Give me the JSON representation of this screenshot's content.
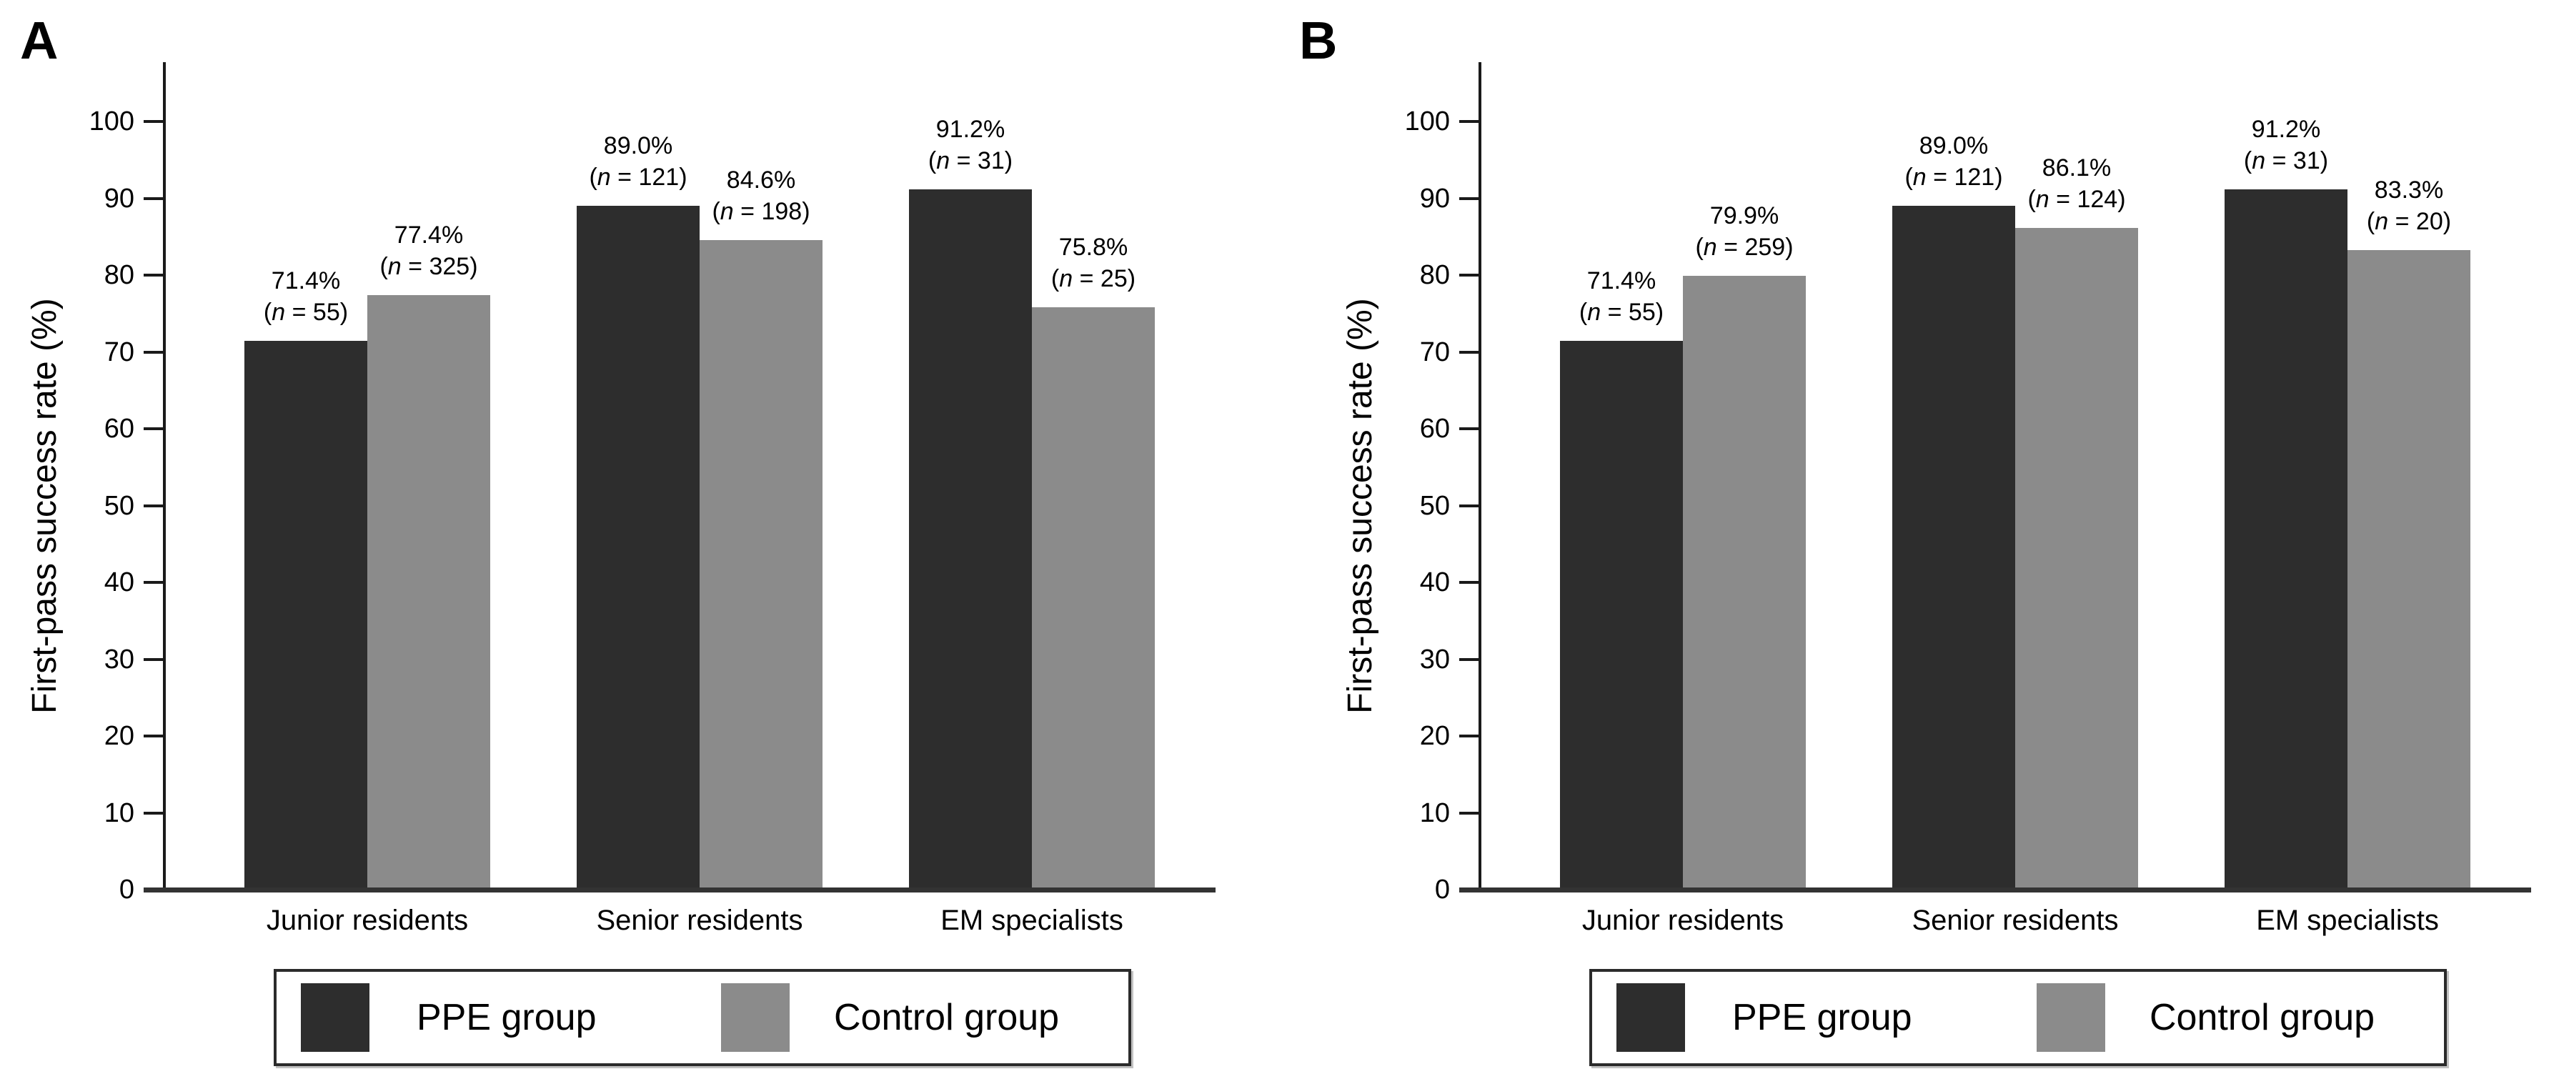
{
  "figure_background": "#ffffff",
  "axis_color": "#1a1a1a",
  "chart_data": [
    {
      "type": "bar",
      "panel_label": "A",
      "title": "",
      "xlabel": "",
      "ylabel": "First-pass success rate (%)",
      "ylim": [
        0,
        100
      ],
      "yticks": [
        0,
        10,
        20,
        30,
        40,
        50,
        60,
        70,
        80,
        90,
        100
      ],
      "grid": false,
      "legend_position": "bottom-center",
      "categories": [
        "Junior residents",
        "Senior residents",
        "EM specialists"
      ],
      "series": [
        {
          "name": "PPE group",
          "color": "#2d2d2d",
          "values": [
            71.4,
            89.0,
            91.2
          ],
          "n": [
            55,
            121,
            31
          ]
        },
        {
          "name": "Control group",
          "color": "#8b8b8b",
          "values": [
            77.4,
            84.6,
            75.8
          ],
          "n": [
            325,
            198,
            25
          ]
        }
      ],
      "bar_label_lines": [
        [
          "71.4%",
          "(n = 55)"
        ],
        [
          "89.0%",
          "(n = 121)"
        ],
        [
          "91.2%",
          "(n = 31)"
        ],
        [
          "77.4%",
          "(n = 325)"
        ],
        [
          "84.6%",
          "(n = 198)"
        ],
        [
          "75.8%",
          "(n = 25)"
        ]
      ]
    },
    {
      "type": "bar",
      "panel_label": "B",
      "title": "",
      "xlabel": "",
      "ylabel": "First-pass success rate (%)",
      "ylim": [
        0,
        100
      ],
      "yticks": [
        0,
        10,
        20,
        30,
        40,
        50,
        60,
        70,
        80,
        90,
        100
      ],
      "grid": false,
      "legend_position": "bottom-center",
      "categories": [
        "Junior residents",
        "Senior residents",
        "EM specialists"
      ],
      "series": [
        {
          "name": "PPE group",
          "color": "#2d2d2d",
          "values": [
            71.4,
            89.0,
            91.2
          ],
          "n": [
            55,
            121,
            31
          ]
        },
        {
          "name": "Control group",
          "color": "#8b8b8b",
          "values": [
            79.9,
            86.1,
            83.3
          ],
          "n": [
            259,
            124,
            20
          ]
        }
      ],
      "bar_label_lines": [
        [
          "71.4%",
          "(n = 55)"
        ],
        [
          "89.0%",
          "(n = 121)"
        ],
        [
          "91.2%",
          "(n = 31)"
        ],
        [
          "79.9%",
          "(n = 259)"
        ],
        [
          "86.1%",
          "(n = 124)"
        ],
        [
          "83.3%",
          "(n = 20)"
        ]
      ]
    }
  ]
}
